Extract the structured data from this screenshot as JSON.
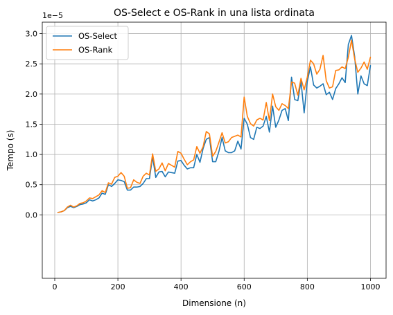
{
  "chart_data": {
    "type": "line",
    "title": "OS-Select e OS-Rank in una lista ordinata",
    "xlabel": "Dimensione (n)",
    "ylabel": "Tempo (s)",
    "offset_text": "1e−5",
    "xlim": [
      -39.5,
      1049.5
    ],
    "ylim": [
      -1.05,
      3.19
    ],
    "xticks": [
      0,
      200,
      400,
      600,
      800,
      1000
    ],
    "xtick_labels": [
      "0",
      "200",
      "400",
      "600",
      "800",
      "1000"
    ],
    "yticks": [
      0.0,
      0.5,
      1.0,
      1.5,
      2.0,
      2.5,
      3.0
    ],
    "ytick_labels": [
      "0.0",
      "0.5",
      "1.0",
      "1.5",
      "2.0",
      "2.5",
      "3.0"
    ],
    "grid": true,
    "legend_position": "upper-left",
    "x": [
      10,
      20,
      30,
      40,
      50,
      60,
      70,
      80,
      90,
      100,
      110,
      120,
      130,
      140,
      150,
      160,
      170,
      180,
      190,
      200,
      210,
      220,
      230,
      240,
      250,
      260,
      270,
      280,
      290,
      300,
      310,
      320,
      330,
      340,
      350,
      360,
      370,
      380,
      390,
      400,
      410,
      420,
      430,
      440,
      450,
      460,
      470,
      480,
      490,
      500,
      510,
      520,
      530,
      540,
      550,
      560,
      570,
      580,
      590,
      600,
      610,
      620,
      630,
      640,
      650,
      660,
      670,
      680,
      690,
      700,
      710,
      720,
      730,
      740,
      750,
      760,
      770,
      780,
      790,
      800,
      810,
      820,
      830,
      840,
      850,
      860,
      870,
      880,
      890,
      900,
      910,
      920,
      930,
      940,
      950,
      960,
      970,
      980,
      990,
      1000
    ],
    "series": [
      {
        "name": "OS-Select",
        "color": "#1f77b4",
        "values": [
          0.04,
          0.05,
          0.07,
          0.12,
          0.14,
          0.12,
          0.14,
          0.17,
          0.18,
          0.2,
          0.25,
          0.23,
          0.25,
          0.28,
          0.36,
          0.34,
          0.5,
          0.47,
          0.52,
          0.58,
          0.57,
          0.55,
          0.41,
          0.41,
          0.46,
          0.46,
          0.47,
          0.52,
          0.6,
          0.6,
          0.96,
          0.62,
          0.71,
          0.72,
          0.63,
          0.71,
          0.7,
          0.69,
          0.89,
          0.9,
          0.82,
          0.76,
          0.78,
          0.78,
          1.0,
          0.87,
          1.1,
          1.25,
          1.28,
          0.88,
          0.88,
          1.05,
          1.28,
          1.06,
          1.03,
          1.03,
          1.06,
          1.22,
          1.09,
          1.6,
          1.5,
          1.28,
          1.25,
          1.45,
          1.43,
          1.47,
          1.63,
          1.37,
          1.8,
          1.45,
          1.57,
          1.73,
          1.76,
          1.56,
          2.28,
          1.91,
          1.89,
          2.21,
          1.69,
          2.21,
          2.45,
          2.15,
          2.1,
          2.13,
          2.17,
          1.99,
          2.03,
          1.91,
          2.09,
          2.17,
          2.27,
          2.19,
          2.82,
          2.97,
          2.62,
          2.0,
          2.3,
          2.17,
          2.14,
          2.47
        ]
      },
      {
        "name": "OS-Rank",
        "color": "#ff7f0e",
        "values": [
          0.04,
          0.05,
          0.07,
          0.13,
          0.16,
          0.13,
          0.15,
          0.19,
          0.2,
          0.23,
          0.28,
          0.27,
          0.3,
          0.33,
          0.4,
          0.37,
          0.53,
          0.51,
          0.62,
          0.64,
          0.7,
          0.64,
          0.44,
          0.45,
          0.58,
          0.54,
          0.52,
          0.64,
          0.69,
          0.66,
          1.01,
          0.72,
          0.76,
          0.86,
          0.73,
          0.85,
          0.82,
          0.79,
          1.05,
          1.02,
          0.92,
          0.83,
          0.88,
          0.91,
          1.13,
          1.02,
          1.13,
          1.38,
          1.34,
          0.97,
          1.05,
          1.2,
          1.36,
          1.19,
          1.21,
          1.28,
          1.3,
          1.32,
          1.29,
          1.95,
          1.63,
          1.51,
          1.47,
          1.57,
          1.6,
          1.57,
          1.86,
          1.56,
          2.0,
          1.79,
          1.73,
          1.84,
          1.81,
          1.76,
          2.2,
          2.18,
          1.98,
          2.26,
          2.07,
          2.28,
          2.56,
          2.5,
          2.33,
          2.41,
          2.64,
          2.22,
          2.1,
          2.12,
          2.39,
          2.4,
          2.45,
          2.42,
          2.61,
          2.89,
          2.58,
          2.36,
          2.43,
          2.53,
          2.41,
          2.61
        ]
      }
    ]
  }
}
